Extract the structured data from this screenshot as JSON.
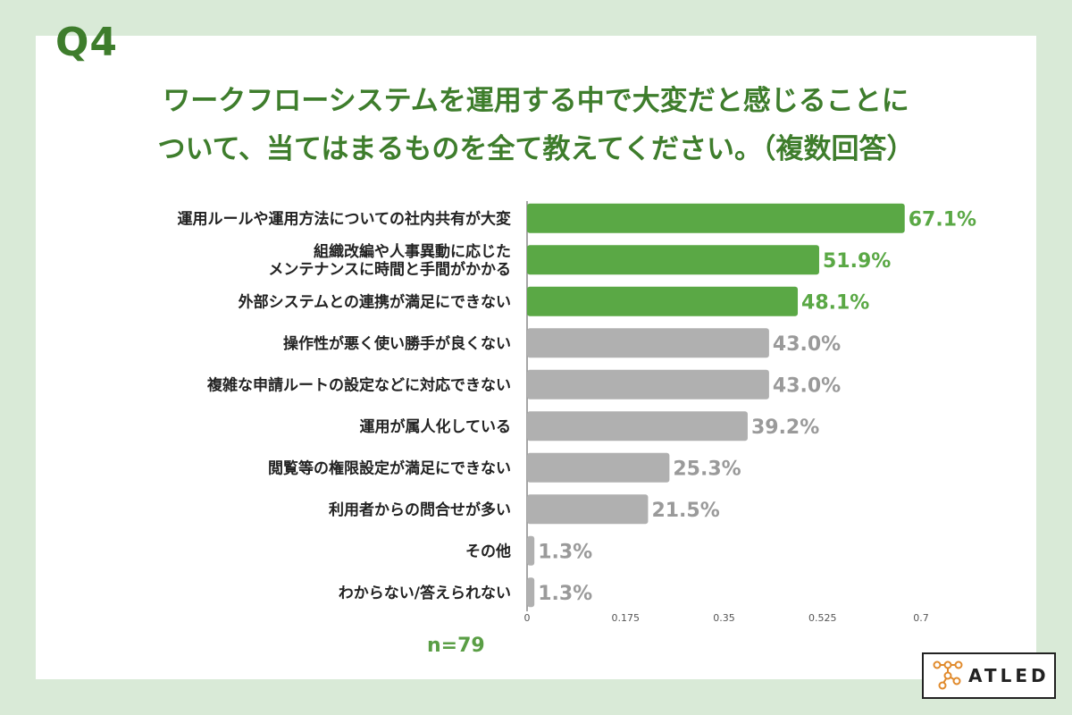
{
  "question": "Q4",
  "title_lines": [
    "ワークフローシステムを運用する中で大変だと感じることに",
    "ついて、当てはまるものを全て教えてください。（複数回答）"
  ],
  "n_label": "n=79",
  "logo_text": "ATLED",
  "colors": {
    "background": "#d9ead7",
    "accent": "#3e7d2c",
    "highlight_bar": "#5aa845",
    "highlight_text": "#5aa845",
    "other_bar": "#b0b0b0",
    "other_text": "#9a9a9a"
  },
  "chart_data": {
    "type": "bar",
    "orientation": "horizontal",
    "categories": [
      "運用ルールや運用方法についての社内共有が大変",
      "組織改編や人事異動に応じた\nメンテナンスに時間と手間がかかる",
      "外部システムとの連携が満足にできない",
      "操作性が悪く使い勝手が良くない",
      "複雑な申請ルートの設定などに対応できない",
      "運用が属人化している",
      "閲覧等の権限設定が満足にできない",
      "利用者からの問合せが多い",
      "その他",
      "わからない/答えられない"
    ],
    "values": [
      0.671,
      0.519,
      0.481,
      0.43,
      0.43,
      0.392,
      0.253,
      0.215,
      0.013,
      0.013
    ],
    "data_labels": [
      "67.1%",
      "51.9%",
      "48.1%",
      "43.0%",
      "43.0%",
      "39.2%",
      "25.3%",
      "21.5%",
      "1.3%",
      "1.3%"
    ],
    "highlighted_top": 3,
    "xlim": [
      0,
      0.7
    ],
    "xticks": [
      "0",
      "0.175",
      "0.35",
      "0.525",
      "0.7"
    ],
    "grid": false
  }
}
